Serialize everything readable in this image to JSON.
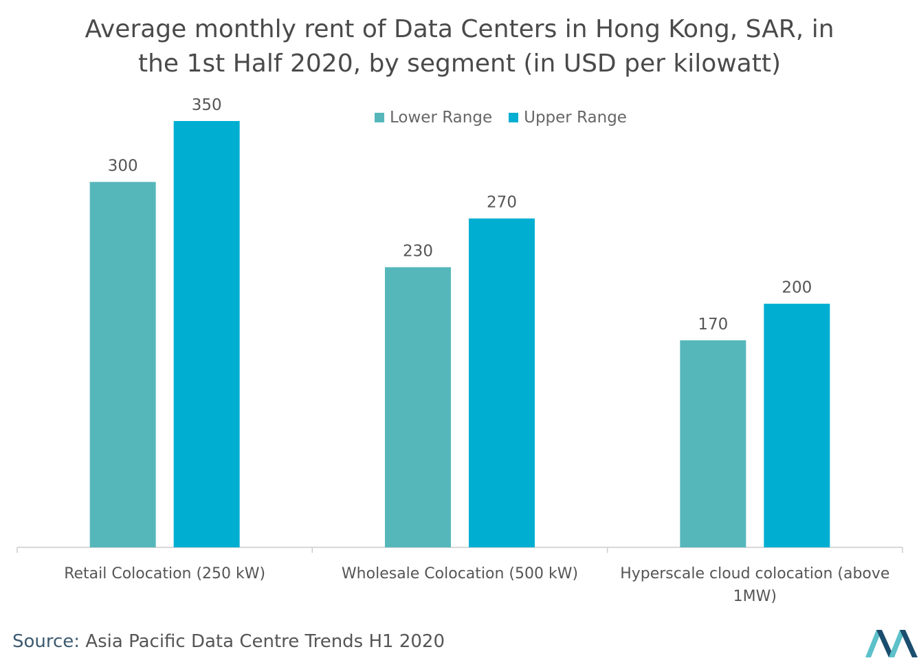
{
  "title_lines": [
    "Average monthly rent of Data Centers in Hong Kong, SAR, in",
    "the 1st Half 2020, by segment (in USD per kilowatt)"
  ],
  "source": {
    "label": "Source:",
    "text": "Asia Pacific Data Centre Trends H1 2020"
  },
  "colors": {
    "lower": "#56b7bb",
    "upper": "#00aed1",
    "axis": "#cccccc",
    "logo_dark": "#1b4e6e",
    "logo_light": "#5cc1c9"
  },
  "chart_data": {
    "type": "bar",
    "title": "Average monthly rent of Data Centers in Hong Kong, SAR, in the 1st Half 2020, by segment (in USD per kilowatt)",
    "categories": [
      [
        "Retail Colocation (250 kW)"
      ],
      [
        "Wholesale Colocation (500 kW)"
      ],
      [
        "Hyperscale cloud colocation (above",
        "1MW)"
      ]
    ],
    "series": [
      {
        "name": "Lower Range",
        "values": [
          300,
          230,
          170
        ],
        "color": "#56b7bb"
      },
      {
        "name": "Upper Range",
        "values": [
          350,
          270,
          200
        ],
        "color": "#00aed1"
      }
    ],
    "ylim": [
      0,
      350
    ],
    "grid": false,
    "legend": "top-center",
    "data_labels": true
  }
}
